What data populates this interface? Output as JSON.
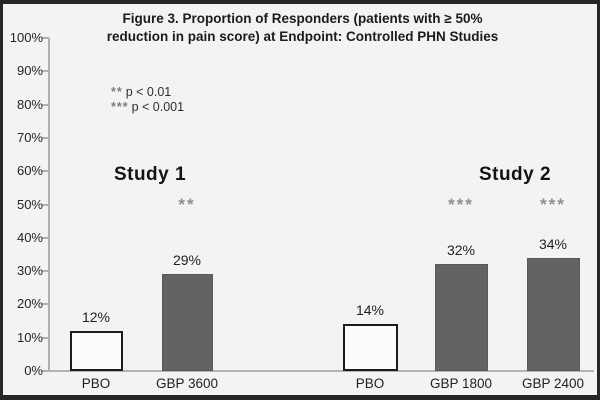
{
  "figure": {
    "title_line1": "Figure 3. Proportion of Responders (patients with ≥ 50%",
    "title_line2": "reduction in pain score) at Endpoint: Controlled PHN Studies"
  },
  "legend": {
    "items": [
      {
        "stars": "**",
        "text": "p < 0.01"
      },
      {
        "stars": "***",
        "text": "p < 0.001"
      }
    ]
  },
  "chart_data": {
    "type": "bar",
    "title": "Figure 3. Proportion of Responders (patients with ≥ 50% reduction in pain score) at Endpoint: Controlled PHN Studies",
    "xlabel": "",
    "ylabel": "",
    "ylim": [
      0,
      100
    ],
    "grid": false,
    "legend_position": "upper-left",
    "annotations": [
      "** p < 0.01",
      "*** p < 0.001"
    ],
    "ytick_labels": [
      "0%",
      "10%",
      "20%",
      "30%",
      "40%",
      "50%",
      "60%",
      "70%",
      "80%",
      "90%",
      "100%"
    ],
    "groups": [
      {
        "name": "Study 1",
        "bars": [
          {
            "label": "PBO",
            "value": 12,
            "value_label": "12%",
            "style": "outline",
            "significance": ""
          },
          {
            "label": "GBP 3600",
            "value": 29,
            "value_label": "29%",
            "style": "filled",
            "significance": "**"
          }
        ]
      },
      {
        "name": "Study 2",
        "bars": [
          {
            "label": "PBO",
            "value": 14,
            "value_label": "14%",
            "style": "outline",
            "significance": ""
          },
          {
            "label": "GBP 1800",
            "value": 32,
            "value_label": "32%",
            "style": "filled",
            "significance": "***"
          },
          {
            "label": "GBP 2400",
            "value": 34,
            "value_label": "34%",
            "style": "filled",
            "significance": "***"
          }
        ]
      }
    ],
    "colors": {
      "filled_bar": "#636363",
      "outline_bar_fill": "#fcfcfc",
      "outline_bar_border": "#1c1c1c",
      "axis": "#b0b0b0",
      "significance": "#8f8f8f",
      "text": "#222222",
      "background": "#f3f3f3",
      "frame": "#262626"
    }
  }
}
